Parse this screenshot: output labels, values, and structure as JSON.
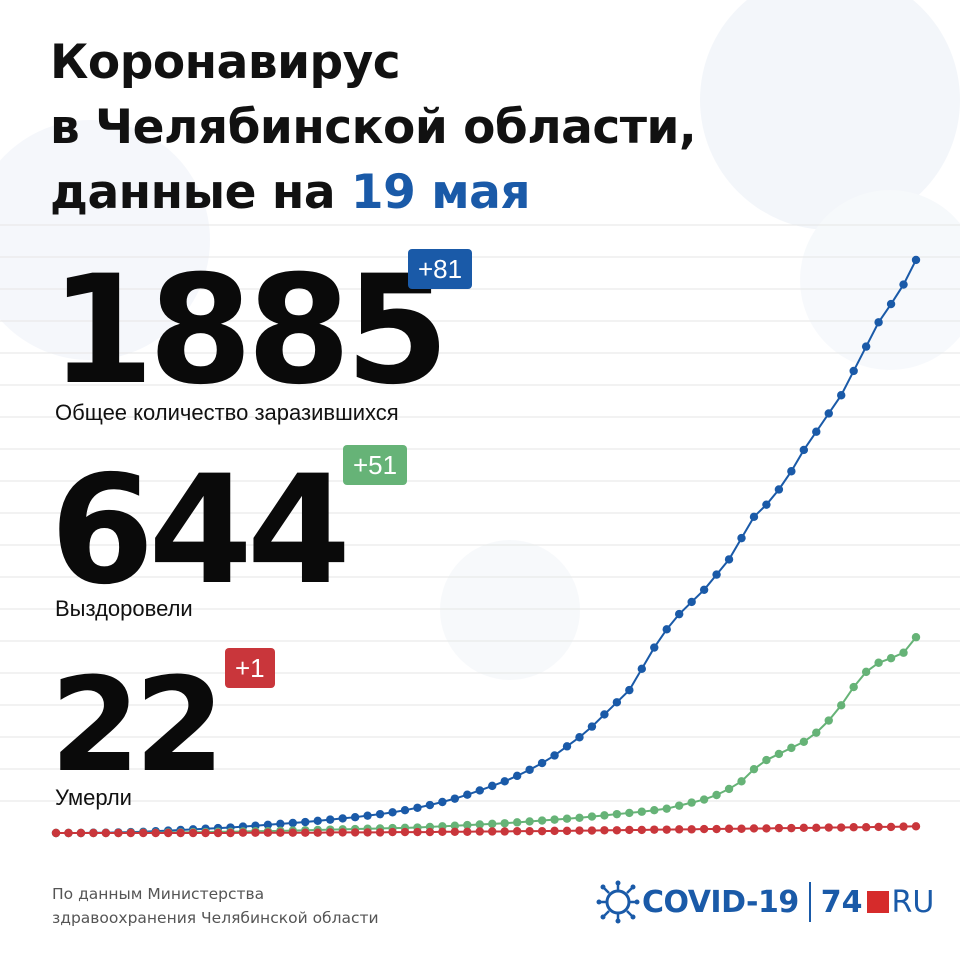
{
  "title": {
    "line1": "Коронавирус",
    "line2": "в Челябинской области,",
    "line3_prefix": "данные на ",
    "line3_accent": "19 мая"
  },
  "stats": {
    "total": {
      "value": "1885",
      "delta": "+81",
      "label": "Общее количество заразившихся",
      "color": "#1a5aa8"
    },
    "recovered": {
      "value": "644",
      "delta": "+51",
      "label": "Выздоровели",
      "color": "#66b377"
    },
    "deaths": {
      "value": "22",
      "delta": "+1",
      "label": "Умерли",
      "color": "#c9363b"
    }
  },
  "source": {
    "line1": "По данным Министерства",
    "line2": "здравоохранения Челябинской области"
  },
  "logo": {
    "covid": "COVID-19",
    "brand_num": "74",
    "brand_tld": "RU",
    "virus_icon": "virus-icon"
  },
  "chart_data": {
    "type": "line",
    "x": [
      1,
      2,
      3,
      4,
      5,
      6,
      7,
      8,
      9,
      10,
      11,
      12,
      13,
      14,
      15,
      16,
      17,
      18,
      19,
      20,
      21,
      22,
      23,
      24,
      25,
      26,
      27,
      28,
      29,
      30,
      31,
      32,
      33,
      34,
      35,
      36,
      37,
      38,
      39,
      40,
      41,
      42,
      43,
      44,
      45,
      46,
      47,
      48,
      49,
      50,
      51,
      52,
      53,
      54,
      55,
      56,
      57,
      58,
      59,
      60,
      61,
      62,
      63,
      64,
      65,
      66,
      67,
      68,
      69,
      70
    ],
    "ylim": [
      0,
      2000
    ],
    "grid": true,
    "series": [
      {
        "color": "#1a5aa8",
        "values": [
          0,
          0,
          0,
          1,
          1,
          2,
          3,
          4,
          6,
          8,
          10,
          12,
          14,
          16,
          18,
          21,
          24,
          27,
          30,
          33,
          36,
          40,
          44,
          48,
          52,
          57,
          62,
          68,
          75,
          83,
          92,
          102,
          113,
          126,
          140,
          155,
          170,
          188,
          208,
          230,
          255,
          285,
          315,
          350,
          390,
          430,
          470,
          540,
          610,
          670,
          720,
          760,
          800,
          850,
          900,
          970,
          1040,
          1080,
          1130,
          1190,
          1260,
          1320,
          1380,
          1440,
          1520,
          1600,
          1680,
          1740,
          1804,
          1885
        ]
      },
      {
        "color": "#66b377",
        "values": [
          0,
          0,
          0,
          0,
          0,
          0,
          1,
          1,
          1,
          2,
          2,
          3,
          3,
          4,
          4,
          5,
          6,
          6,
          7,
          8,
          9,
          10,
          11,
          12,
          13,
          14,
          15,
          16,
          17,
          18,
          20,
          22,
          24,
          26,
          28,
          30,
          32,
          35,
          38,
          41,
          44,
          47,
          50,
          54,
          58,
          62,
          66,
          70,
          75,
          80,
          90,
          100,
          110,
          125,
          145,
          170,
          210,
          240,
          260,
          280,
          300,
          330,
          370,
          420,
          480,
          530,
          560,
          575,
          593,
          644
        ]
      },
      {
        "color": "#c9363b",
        "values": [
          0,
          0,
          0,
          0,
          0,
          0,
          0,
          0,
          0,
          0,
          0,
          0,
          0,
          0,
          0,
          1,
          1,
          1,
          1,
          1,
          1,
          1,
          2,
          2,
          2,
          2,
          2,
          3,
          3,
          3,
          3,
          4,
          4,
          4,
          5,
          5,
          5,
          6,
          6,
          6,
          7,
          7,
          8,
          8,
          9,
          9,
          10,
          10,
          11,
          11,
          12,
          12,
          13,
          13,
          14,
          14,
          15,
          15,
          16,
          16,
          17,
          17,
          18,
          18,
          19,
          19,
          20,
          20,
          21,
          22
        ]
      }
    ]
  }
}
